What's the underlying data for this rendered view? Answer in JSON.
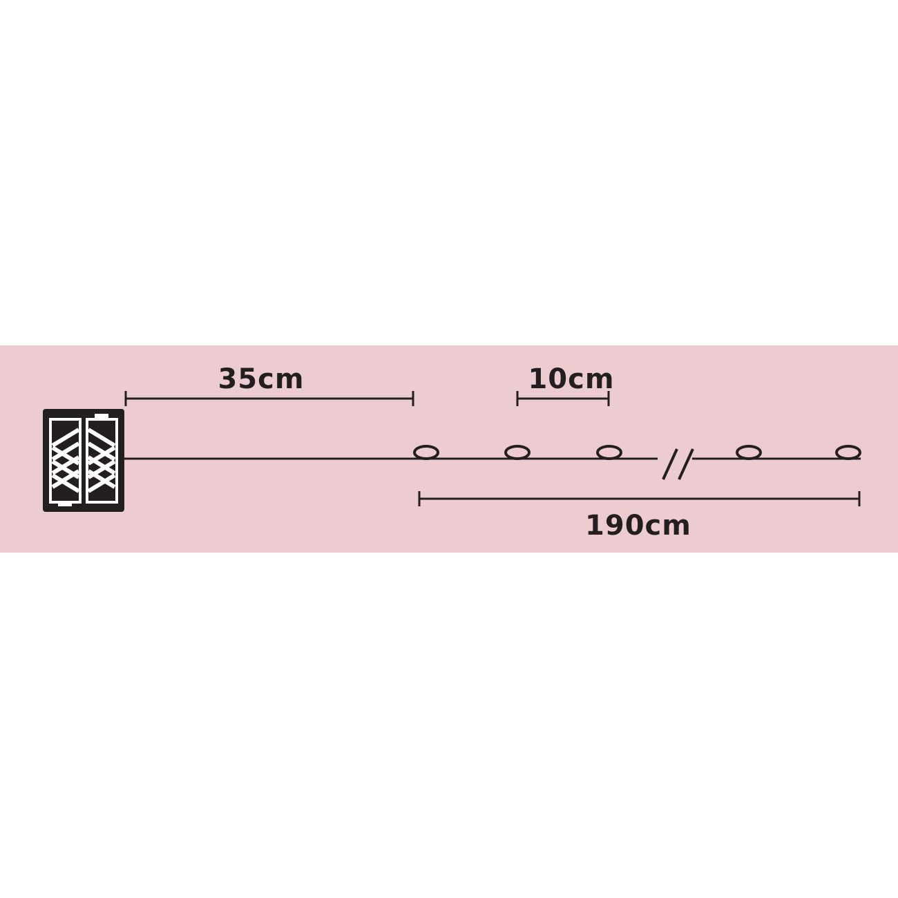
{
  "colors": {
    "background": "#ffffff",
    "band": "#ecccd1",
    "ink": "#231f20"
  },
  "icons": {
    "battery_box": "battery-box-icon",
    "bulb": "bulb-icon",
    "break_mark": "break-mark-icon"
  },
  "dimensions": {
    "lead_cable": {
      "label": "35cm"
    },
    "bulb_spacing": {
      "label": "10cm"
    },
    "lit_length": {
      "label": "190cm"
    }
  },
  "bulbs": {
    "count_shown": 5
  }
}
